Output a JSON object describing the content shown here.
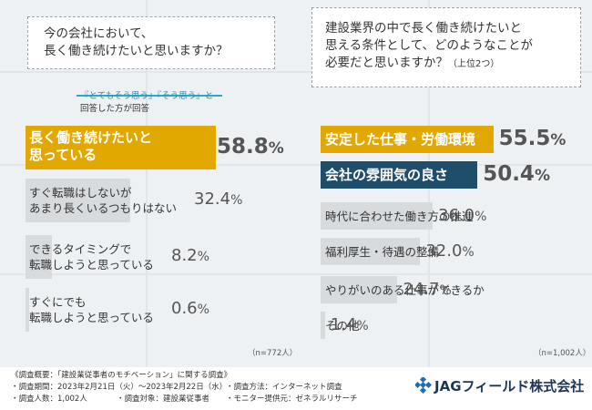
{
  "left": {
    "question": [
      "今の会社において、",
      "長く働き続けたいと思いますか？"
    ],
    "note": [
      "『とてもそう思う』『そう思う』と",
      "回答した方が回答"
    ],
    "items": [
      {
        "label": [
          "長く働き続けたいと",
          "思っている"
        ],
        "value": "58.8",
        "pct": "%"
      },
      {
        "label": [
          "すぐ転職はしないが",
          "あまり長くいるつもりはない"
        ],
        "value": "32.4",
        "pct": "%"
      },
      {
        "label": [
          "できるタイミングで",
          "転職しようと思っている"
        ],
        "value": "8.2",
        "pct": "%"
      },
      {
        "label": [
          "すぐにでも",
          "転職しようと思っている"
        ],
        "value": "0.6",
        "pct": "%"
      }
    ],
    "n": "（n=772人）"
  },
  "right": {
    "question": [
      "建設業界の中で長く働き続けたいと",
      "思える条件として、どのようなことが",
      "必要だと思いますか？"
    ],
    "question_suffix": "（上位2つ）",
    "items": [
      {
        "label": "安定した仕事・労働環境",
        "value": "55.5",
        "pct": "%"
      },
      {
        "label": "会社の雰囲気の良さ",
        "value": "50.4",
        "pct": "%"
      },
      {
        "label": "時代に合わせた働き方の推進",
        "value": "36.0",
        "pct": "%"
      },
      {
        "label": "福利厚生・待遇の整備",
        "value": "32.0",
        "pct": "%"
      },
      {
        "label": "やりがいのある仕事ができるか",
        "value": "24.7",
        "pct": "%"
      },
      {
        "label": "その他",
        "value": "1.4",
        "pct": "%"
      }
    ],
    "n": "（n=1,002人）"
  },
  "chart_data": [
    {
      "type": "bar",
      "title": "今の会社において、長く働き続けたいと思いますか？",
      "categories": [
        "長く働き続けたいと思っている",
        "すぐ転職はしないがあまり長くいるつもりはない",
        "できるタイミングで転職しようと思っている",
        "すぐにでも転職しようと思っている"
      ],
      "values": [
        58.8,
        32.4,
        8.2,
        0.6
      ],
      "xlim": [
        0,
        60
      ]
    },
    {
      "type": "bar",
      "title": "建設業界の中で長く働き続けたいと思える条件として、どのようなことが必要だと思いますか？（上位2つ）",
      "categories": [
        "安定した仕事・労働環境",
        "会社の雰囲気の良さ",
        "時代に合わせた働き方の推進",
        "福利厚生・待遇の整備",
        "やりがいのある仕事ができるか",
        "その他"
      ],
      "values": [
        55.5,
        50.4,
        36.0,
        32.0,
        24.7,
        1.4
      ],
      "xlim": [
        0,
        60
      ]
    }
  ],
  "footer": {
    "lines": [
      "《調査概要：「建設業従事者のモチベーション」に関する調査》",
      "・調査期間：2023年2月21日（火）〜2023年2月22日（水）",
      "・調査人数：1,002人",
      "・調査対象：建設業従事者",
      "・調査方法：インターネット調査",
      "・モニター提供元：ゼネラルリサーチ"
    ],
    "company": "JAGフィールド株式会社"
  },
  "colors": {
    "highlight_gold": "#e0a800",
    "highlight_navy": "#1f4e6b",
    "bar_gray": "#d8dbde",
    "note_accent": "#2aa9c4",
    "logo_blue": "#1d6fb8"
  }
}
